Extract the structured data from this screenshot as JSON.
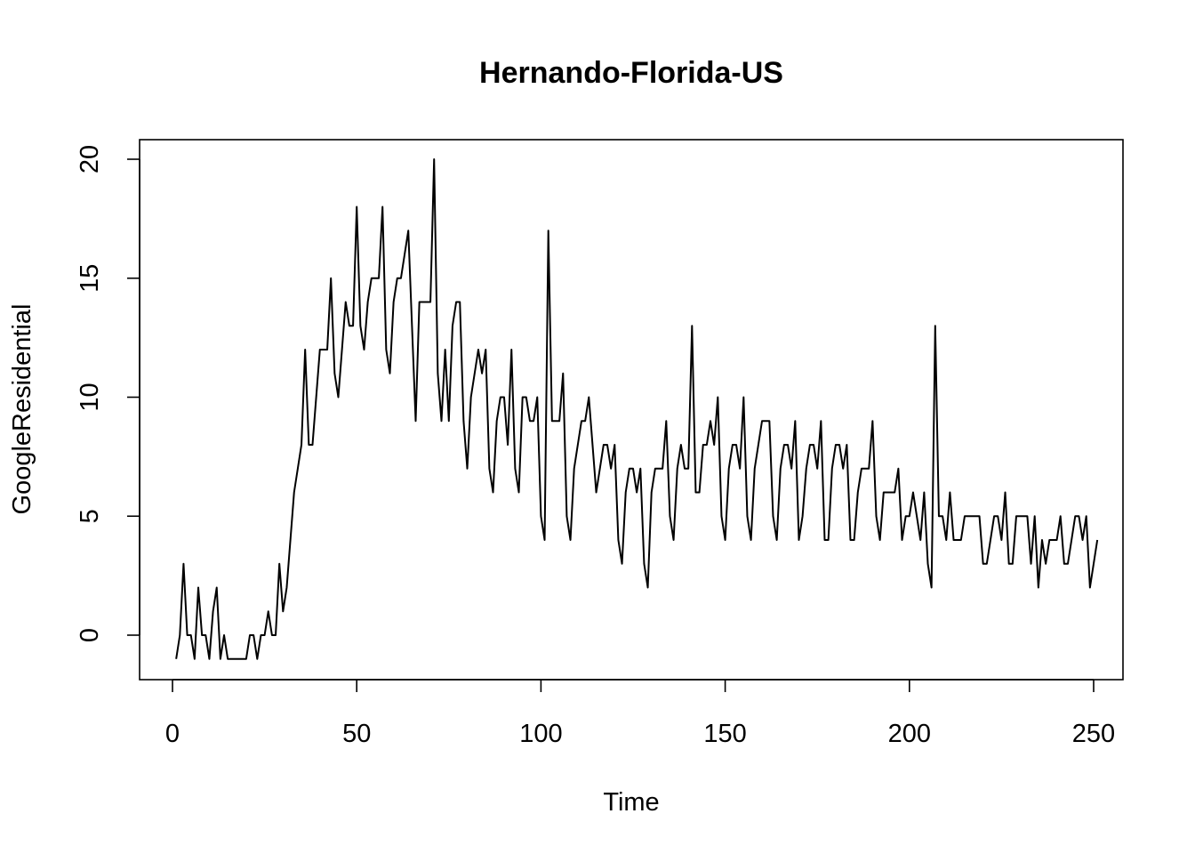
{
  "chart_data": {
    "type": "line",
    "title": "Hernando-Florida-US",
    "xlabel": "Time",
    "ylabel": "GoogleResidential",
    "xlim": [
      0,
      250
    ],
    "ylim": [
      -1,
      20
    ],
    "grid": false,
    "x_ticks": [
      0,
      50,
      100,
      150,
      200,
      250
    ],
    "y_ticks": [
      0,
      5,
      10,
      15,
      20
    ],
    "x_start": 1,
    "y": [
      -1,
      0,
      3,
      0,
      0,
      -1,
      2,
      0,
      0,
      -1,
      1,
      2,
      -1,
      0,
      -1,
      -1,
      -1,
      -1,
      -1,
      -1,
      0,
      0,
      -1,
      0,
      0,
      1,
      0,
      0,
      3,
      1,
      2,
      4,
      6,
      7,
      8,
      12,
      8,
      8,
      10,
      12,
      12,
      12,
      15,
      11,
      10,
      12,
      14,
      13,
      13,
      18,
      13,
      12,
      14,
      15,
      15,
      15,
      18,
      12,
      11,
      14,
      15,
      15,
      16,
      17,
      13,
      9,
      14,
      14,
      14,
      14,
      20,
      11,
      9,
      12,
      9,
      13,
      14,
      14,
      9,
      7,
      10,
      11,
      12,
      11,
      12,
      7,
      6,
      9,
      10,
      10,
      8,
      12,
      7,
      6,
      10,
      10,
      9,
      9,
      10,
      5,
      4,
      17,
      9,
      9,
      9,
      11,
      5,
      4,
      7,
      8,
      9,
      9,
      10,
      8,
      6,
      7,
      8,
      8,
      7,
      8,
      4,
      3,
      6,
      7,
      7,
      6,
      7,
      3,
      2,
      6,
      7,
      7,
      7,
      9,
      5,
      4,
      7,
      8,
      7,
      7,
      13,
      6,
      6,
      8,
      8,
      9,
      8,
      10,
      5,
      4,
      7,
      8,
      8,
      7,
      10,
      5,
      4,
      7,
      8,
      9,
      9,
      9,
      5,
      4,
      7,
      8,
      8,
      7,
      9,
      4,
      5,
      7,
      8,
      8,
      7,
      9,
      4,
      4,
      7,
      8,
      8,
      7,
      8,
      4,
      4,
      6,
      7,
      7,
      7,
      9,
      5,
      4,
      6,
      6,
      6,
      6,
      7,
      4,
      5,
      5,
      6,
      5,
      4,
      6,
      3,
      2,
      13,
      5,
      5,
      4,
      6,
      4,
      4,
      4,
      5,
      5,
      5,
      5,
      5,
      3,
      3,
      4,
      5,
      5,
      4,
      6,
      3,
      3,
      5,
      5,
      5,
      5,
      3,
      5,
      2,
      4,
      3,
      4,
      4,
      4,
      5,
      3,
      3,
      4,
      5,
      5,
      4,
      5,
      2,
      3,
      4
    ]
  }
}
